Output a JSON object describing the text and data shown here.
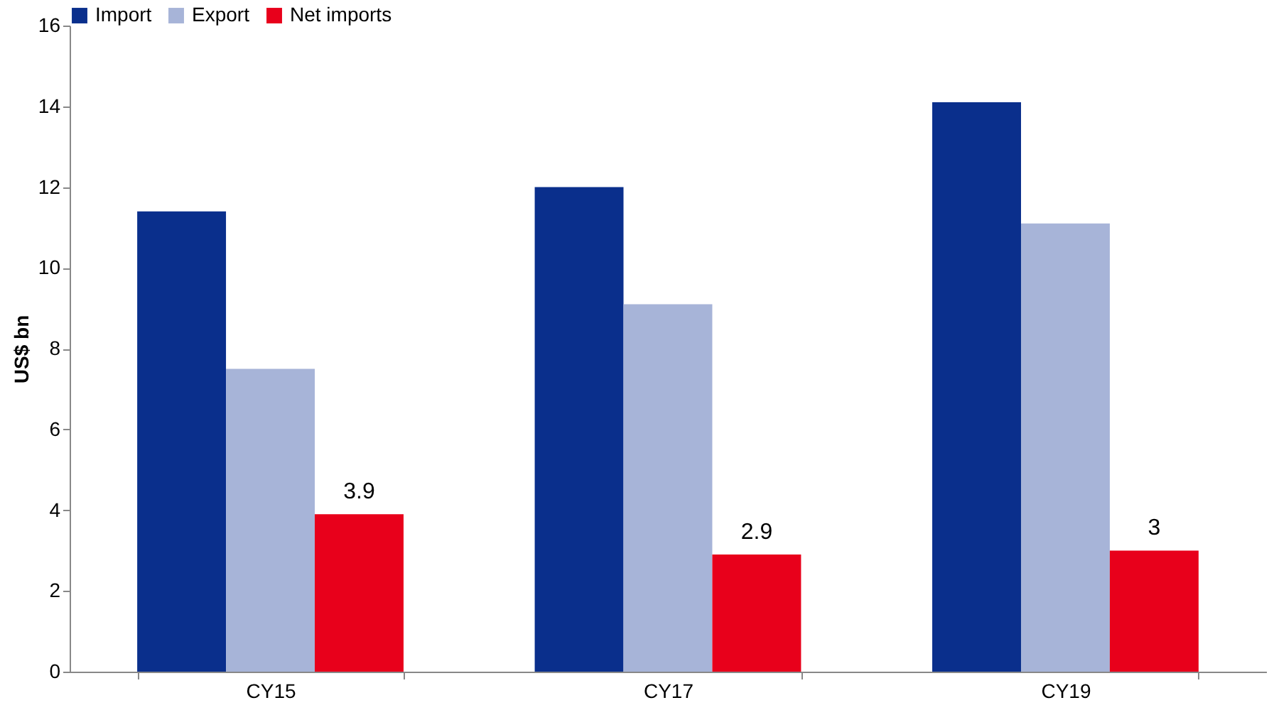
{
  "chart_data": {
    "type": "bar",
    "ylabel": "US$ bn",
    "categories": [
      "CY15",
      "CY17",
      "CY19"
    ],
    "series": [
      {
        "name": "Import",
        "color": "#0a2f8c",
        "values": [
          11.4,
          12.0,
          14.1
        ]
      },
      {
        "name": "Export",
        "color": "#a7b4d8",
        "values": [
          7.5,
          9.1,
          11.1
        ]
      },
      {
        "name": "Net imports",
        "color": "#e8001b",
        "values": [
          3.9,
          2.9,
          3.0
        ],
        "value_labels": [
          "3.9",
          "2.9",
          "3"
        ]
      }
    ],
    "ylim": [
      0,
      16
    ],
    "yticks": [
      0,
      2,
      4,
      6,
      8,
      10,
      12,
      14,
      16
    ],
    "grid": false,
    "legend": "top"
  }
}
